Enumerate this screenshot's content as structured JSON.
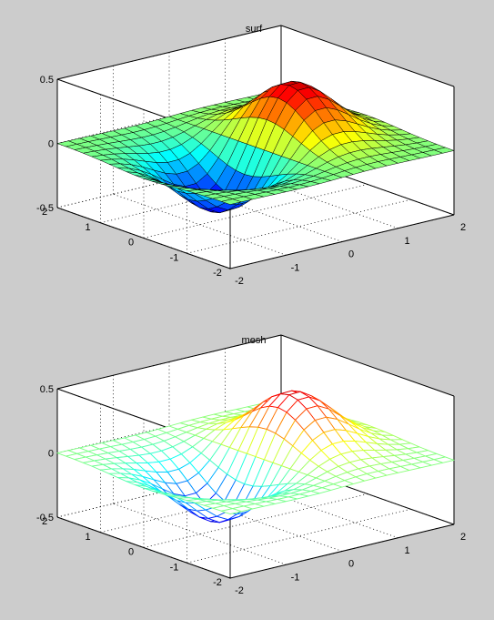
{
  "chart_data": [
    {
      "type": "surface",
      "style": "surf",
      "title": "surf",
      "function": "x*exp(-x^2-y^2)",
      "x": [
        -2.0,
        -1.8,
        -1.6,
        -1.4,
        -1.2,
        -1.0,
        -0.8,
        -0.6,
        -0.4,
        -0.2,
        0.0,
        0.2,
        0.4,
        0.6,
        0.8,
        1.0,
        1.2,
        1.4,
        1.6,
        1.8,
        2.0
      ],
      "y": [
        -2.0,
        -1.8,
        -1.6,
        -1.4,
        -1.2,
        -1.0,
        -0.8,
        -0.6,
        -0.4,
        -0.2,
        0.0,
        0.2,
        0.4,
        0.6,
        0.8,
        1.0,
        1.2,
        1.4,
        1.6,
        1.8,
        2.0
      ],
      "xlim": [
        -2,
        2
      ],
      "ylim": [
        -2,
        2
      ],
      "zlim": [
        -0.5,
        0.5
      ],
      "x_ticks": [
        -2,
        -1,
        0,
        1,
        2
      ],
      "y_ticks": [
        -2,
        -1,
        0,
        1,
        2
      ],
      "z_ticks": [
        -0.5,
        0,
        0.5
      ],
      "x_tick_labels": [
        "-2",
        "-1",
        "0",
        "1",
        "2"
      ],
      "y_tick_labels": [
        "-2",
        "-1",
        "0",
        "1",
        "2"
      ],
      "z_tick_labels": [
        "-0.5",
        "0",
        "0.5"
      ],
      "colormap": "jet",
      "grid": true
    },
    {
      "type": "surface",
      "style": "mesh",
      "title": "mesh",
      "function": "x*exp(-x^2-y^2)",
      "x": [
        -2.0,
        -1.8,
        -1.6,
        -1.4,
        -1.2,
        -1.0,
        -0.8,
        -0.6,
        -0.4,
        -0.2,
        0.0,
        0.2,
        0.4,
        0.6,
        0.8,
        1.0,
        1.2,
        1.4,
        1.6,
        1.8,
        2.0
      ],
      "y": [
        -2.0,
        -1.8,
        -1.6,
        -1.4,
        -1.2,
        -1.0,
        -0.8,
        -0.6,
        -0.4,
        -0.2,
        0.0,
        0.2,
        0.4,
        0.6,
        0.8,
        1.0,
        1.2,
        1.4,
        1.6,
        1.8,
        2.0
      ],
      "xlim": [
        -2,
        2
      ],
      "ylim": [
        -2,
        2
      ],
      "zlim": [
        -0.5,
        0.5
      ],
      "x_ticks": [
        -2,
        -1,
        0,
        1,
        2
      ],
      "y_ticks": [
        -2,
        -1,
        0,
        1,
        2
      ],
      "z_ticks": [
        -0.5,
        0,
        0.5
      ],
      "x_tick_labels": [
        "-2",
        "-1",
        "0",
        "1",
        "2"
      ],
      "y_tick_labels": [
        "-2",
        "-1",
        "0",
        "1",
        "2"
      ],
      "z_tick_labels": [
        "-0.5",
        "0",
        "0.5"
      ],
      "colormap": "jet",
      "grid": true
    }
  ],
  "colors": {
    "figure_background": "#cccccc",
    "axes_background": "#ffffff",
    "edge_color": "#000000"
  }
}
